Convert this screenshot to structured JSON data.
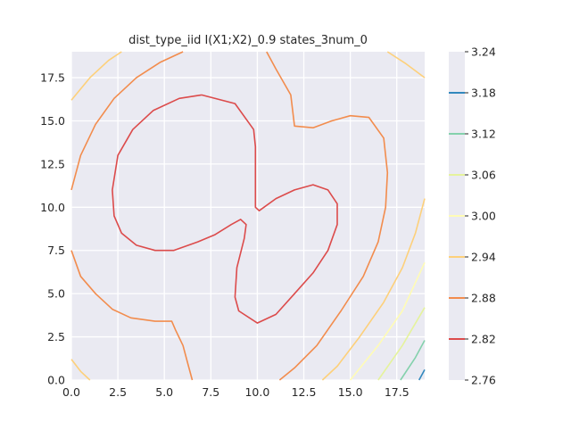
{
  "chart_data": {
    "type": "contour",
    "title": "dist_type_iid I(X1;X2)_0.9 states_3num_0",
    "xlabel": "",
    "ylabel": "",
    "xlim": [
      0,
      19
    ],
    "ylim": [
      0,
      19
    ],
    "x_ticks": [
      "0.0",
      "2.5",
      "5.0",
      "7.5",
      "10.0",
      "12.5",
      "15.0",
      "17.5"
    ],
    "y_ticks": [
      "0.0",
      "2.5",
      "5.0",
      "7.5",
      "10.0",
      "12.5",
      "15.0",
      "17.5"
    ],
    "grid": true,
    "colorbar": {
      "ticks": [
        "3.24",
        "3.18",
        "3.12",
        "3.06",
        "3.00",
        "2.94",
        "2.88",
        "2.82",
        "2.76"
      ],
      "range": [
        2.76,
        3.24
      ]
    },
    "levels": [
      {
        "value": 2.82,
        "color": "#dc4b4b",
        "paths": [
          [
            [
              7,
              16.5
            ],
            [
              8.8,
              16
            ],
            [
              9.8,
              14.5
            ],
            [
              9.9,
              13.5
            ],
            [
              9.9,
              10
            ],
            [
              10.1,
              9.8
            ],
            [
              11,
              10.5
            ],
            [
              12,
              11
            ],
            [
              13,
              11.3
            ],
            [
              13.8,
              11
            ],
            [
              14.3,
              10.2
            ],
            [
              14.3,
              9
            ],
            [
              13.8,
              7.5
            ],
            [
              13,
              6.2
            ],
            [
              12,
              5
            ],
            [
              11,
              3.8
            ],
            [
              10,
              3.3
            ],
            [
              9,
              4
            ],
            [
              8.8,
              4.8
            ],
            [
              8.9,
              6.5
            ],
            [
              9.3,
              8.2
            ],
            [
              9.4,
              9
            ],
            [
              9.1,
              9.3
            ],
            [
              8.6,
              9
            ],
            [
              7.7,
              8.4
            ],
            [
              6.8,
              8
            ],
            [
              5.5,
              7.5
            ],
            [
              4.5,
              7.5
            ],
            [
              3.5,
              7.8
            ],
            [
              2.7,
              8.5
            ],
            [
              2.3,
              9.5
            ],
            [
              2.2,
              11
            ],
            [
              2.5,
              13
            ],
            [
              3.3,
              14.5
            ],
            [
              4.4,
              15.6
            ],
            [
              5.8,
              16.3
            ],
            [
              7,
              16.5
            ]
          ]
        ]
      },
      {
        "value": 2.88,
        "color": "#f28c4d",
        "paths": [
          [
            [
              0,
              0.5
            ],
            [
              0,
              0.5
            ]
          ],
          [
            [
              0,
              11
            ],
            [
              0.5,
              13
            ],
            [
              1.3,
              14.8
            ],
            [
              2.3,
              16.3
            ],
            [
              3.5,
              17.5
            ],
            [
              4.8,
              18.4
            ],
            [
              6,
              19
            ]
          ],
          [
            [
              10.5,
              19
            ],
            [
              11,
              18
            ],
            [
              11.8,
              16.5
            ],
            [
              12,
              14.7
            ],
            [
              13,
              14.6
            ],
            [
              14,
              15
            ],
            [
              15,
              15.3
            ],
            [
              16,
              15.2
            ],
            [
              16.8,
              14
            ],
            [
              17,
              12
            ],
            [
              16.9,
              10
            ],
            [
              16.5,
              8
            ],
            [
              15.7,
              6
            ],
            [
              14.5,
              4
            ],
            [
              13.2,
              2
            ],
            [
              12,
              0.7
            ],
            [
              11.2,
              0
            ]
          ],
          [
            [
              0,
              7.5
            ],
            [
              0.5,
              6
            ],
            [
              1.3,
              5
            ],
            [
              2.2,
              4.1
            ],
            [
              3.2,
              3.6
            ],
            [
              4.5,
              3.4
            ],
            [
              5.4,
              3.4
            ],
            [
              5.6,
              2.9
            ],
            [
              6,
              2
            ],
            [
              6.3,
              0.8
            ],
            [
              6.5,
              0
            ]
          ]
        ]
      },
      {
        "value": 2.94,
        "color": "#fdd07a",
        "paths": [
          [
            [
              0,
              16.2
            ],
            [
              1,
              17.5
            ],
            [
              2,
              18.5
            ],
            [
              2.7,
              19
            ]
          ],
          [
            [
              17,
              19
            ],
            [
              18,
              18.3
            ],
            [
              19,
              17.5
            ]
          ],
          [
            [
              0,
              1.2
            ],
            [
              0.5,
              0.5
            ],
            [
              1,
              0
            ]
          ],
          [
            [
              13.5,
              0
            ],
            [
              14.3,
              0.8
            ],
            [
              15.5,
              2.5
            ],
            [
              16.8,
              4.5
            ],
            [
              17.8,
              6.5
            ],
            [
              18.5,
              8.5
            ],
            [
              19,
              10.5
            ]
          ]
        ]
      },
      {
        "value": 3.0,
        "color": "#fffcb5",
        "paths": [
          [
            [
              15,
              0
            ],
            [
              16.5,
              2
            ],
            [
              17.8,
              4
            ],
            [
              19,
              6.8
            ]
          ]
        ]
      },
      {
        "value": 3.06,
        "color": "#e5f39c",
        "paths": [
          [
            [
              16.5,
              0
            ],
            [
              17.8,
              2
            ],
            [
              19,
              4.2
            ]
          ]
        ]
      },
      {
        "value": 3.12,
        "color": "#84d1ac",
        "paths": [
          [
            [
              17.7,
              0
            ],
            [
              18.5,
              1.3
            ],
            [
              19,
              2.3
            ]
          ]
        ]
      },
      {
        "value": 3.18,
        "color": "#3288bd",
        "paths": [
          [
            [
              18.7,
              0
            ],
            [
              19,
              0.6
            ]
          ]
        ]
      }
    ]
  }
}
